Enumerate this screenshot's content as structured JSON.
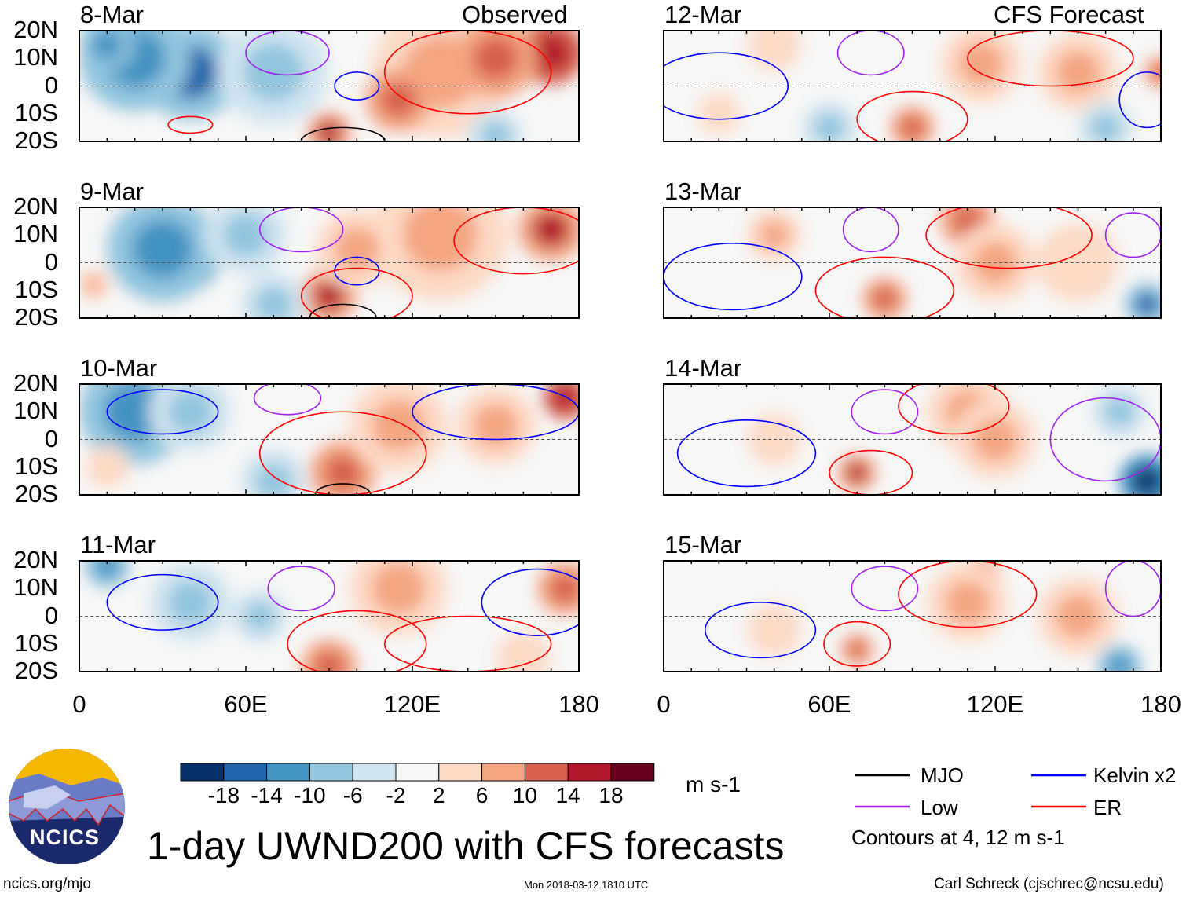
{
  "title": "1-day UWND200 with CFS forecasts",
  "left_header": "Observed",
  "right_header": "CFS Forecast",
  "lat_ticks": [
    "20N",
    "10N",
    "0",
    "10S",
    "20S"
  ],
  "lon_ticks": [
    "0",
    "60E",
    "120E",
    "180"
  ],
  "units": "m s-1",
  "colorbar": {
    "levels": [
      "-18",
      "-14",
      "-10",
      "-6",
      "-2",
      "2",
      "6",
      "10",
      "14",
      "18"
    ],
    "colors": [
      "#08306b",
      "#2166ac",
      "#4393c3",
      "#92c5de",
      "#d1e5f0",
      "#f7f7f7",
      "#fddbc7",
      "#f4a582",
      "#d6604d",
      "#b2182b",
      "#67001f"
    ]
  },
  "legend": {
    "mjo": "MJO",
    "kelvin": "Kelvin x2",
    "low": "Low",
    "er": "ER",
    "note": "Contours at 4, 12 m s-1",
    "colors": {
      "mjo": "#000000",
      "kelvin": "#0000ff",
      "low": "#a020f0",
      "er": "#ff0000"
    }
  },
  "logo_text": "NCICS",
  "footer": {
    "url": "ncics.org/mjo",
    "timestamp": "Mon 2018-03-12 1810 UTC",
    "author": "Carl Schreck (cjschrec@ncsu.edu)"
  },
  "panels": [
    {
      "date": "8-Mar",
      "blobs": [
        [
          40,
          5,
          -14,
          18
        ],
        [
          20,
          10,
          -10,
          20
        ],
        [
          70,
          5,
          -8,
          20
        ],
        [
          10,
          15,
          -10,
          10
        ],
        [
          130,
          5,
          10,
          25
        ],
        [
          170,
          12,
          18,
          12
        ],
        [
          150,
          10,
          12,
          15
        ],
        [
          90,
          -17,
          16,
          8
        ],
        [
          115,
          -5,
          12,
          12
        ],
        [
          150,
          -18,
          -6,
          10
        ]
      ],
      "contours": [
        [
          95,
          -20,
          15,
          5,
          "mjo"
        ],
        [
          75,
          12,
          15,
          8,
          "low"
        ],
        [
          100,
          0,
          8,
          5,
          "kelvin"
        ],
        [
          140,
          5,
          30,
          15,
          "er"
        ],
        [
          40,
          -14,
          8,
          3,
          "er"
        ]
      ]
    },
    {
      "date": "9-Mar",
      "blobs": [
        [
          40,
          0,
          -18,
          10
        ],
        [
          30,
          5,
          -12,
          20
        ],
        [
          60,
          10,
          -8,
          15
        ],
        [
          90,
          -12,
          16,
          10
        ],
        [
          130,
          10,
          10,
          25
        ],
        [
          170,
          12,
          16,
          12
        ],
        [
          100,
          5,
          8,
          15
        ],
        [
          5,
          -8,
          10,
          6
        ],
        [
          70,
          -15,
          -6,
          12
        ]
      ],
      "contours": [
        [
          95,
          -20,
          12,
          5,
          "mjo"
        ],
        [
          80,
          12,
          15,
          8,
          "low"
        ],
        [
          100,
          -3,
          8,
          5,
          "kelvin"
        ],
        [
          100,
          -12,
          20,
          10,
          "er"
        ],
        [
          160,
          8,
          25,
          12,
          "er"
        ]
      ]
    },
    {
      "date": "10-Mar",
      "blobs": [
        [
          20,
          10,
          -10,
          20
        ],
        [
          40,
          10,
          -8,
          15
        ],
        [
          10,
          -10,
          6,
          8
        ],
        [
          95,
          -12,
          14,
          12
        ],
        [
          115,
          5,
          10,
          18
        ],
        [
          175,
          15,
          18,
          8
        ],
        [
          150,
          5,
          8,
          15
        ],
        [
          70,
          -15,
          -6,
          12
        ]
      ],
      "contours": [
        [
          95,
          -20,
          10,
          4,
          "mjo"
        ],
        [
          75,
          15,
          12,
          6,
          "low"
        ],
        [
          95,
          -5,
          30,
          15,
          "er"
        ],
        [
          150,
          10,
          30,
          10,
          "kelvin"
        ],
        [
          30,
          10,
          20,
          8,
          "kelvin"
        ]
      ]
    },
    {
      "date": "11-Mar",
      "blobs": [
        [
          10,
          18,
          -12,
          8
        ],
        [
          40,
          5,
          -6,
          15
        ],
        [
          115,
          10,
          10,
          18
        ],
        [
          90,
          -18,
          12,
          10
        ],
        [
          175,
          10,
          14,
          10
        ],
        [
          160,
          -15,
          6,
          10
        ],
        [
          65,
          0,
          -6,
          10
        ]
      ],
      "contours": [
        [
          80,
          10,
          12,
          8,
          "low"
        ],
        [
          100,
          -10,
          25,
          12,
          "er"
        ],
        [
          165,
          5,
          20,
          12,
          "kelvin"
        ],
        [
          140,
          -10,
          30,
          10,
          "er"
        ],
        [
          30,
          5,
          20,
          10,
          "kelvin"
        ]
      ]
    },
    {
      "date": "12-Mar",
      "blobs": [
        [
          90,
          -15,
          14,
          8
        ],
        [
          115,
          8,
          10,
          15
        ],
        [
          150,
          5,
          10,
          15
        ],
        [
          180,
          5,
          14,
          6
        ],
        [
          60,
          -15,
          -6,
          10
        ],
        [
          40,
          15,
          6,
          10
        ],
        [
          20,
          -10,
          6,
          8
        ],
        [
          160,
          -15,
          -6,
          10
        ]
      ],
      "contours": [
        [
          90,
          -12,
          20,
          10,
          "er"
        ],
        [
          75,
          12,
          12,
          8,
          "low"
        ],
        [
          140,
          10,
          30,
          10,
          "er"
        ],
        [
          20,
          0,
          25,
          12,
          "kelvin"
        ],
        [
          175,
          -5,
          10,
          10,
          "kelvin"
        ]
      ]
    },
    {
      "date": "13-Mar",
      "blobs": [
        [
          80,
          -13,
          14,
          8
        ],
        [
          110,
          15,
          12,
          10
        ],
        [
          120,
          0,
          10,
          15
        ],
        [
          175,
          -15,
          -16,
          8
        ],
        [
          40,
          10,
          8,
          10
        ],
        [
          150,
          0,
          6,
          15
        ]
      ],
      "contours": [
        [
          80,
          -10,
          25,
          12,
          "er"
        ],
        [
          75,
          12,
          10,
          8,
          "low"
        ],
        [
          125,
          10,
          30,
          12,
          "er"
        ],
        [
          25,
          -5,
          25,
          12,
          "kelvin"
        ],
        [
          170,
          10,
          10,
          8,
          "low"
        ]
      ]
    },
    {
      "date": "14-Mar",
      "blobs": [
        [
          105,
          15,
          18,
          6
        ],
        [
          110,
          10,
          10,
          15
        ],
        [
          120,
          0,
          10,
          15
        ],
        [
          70,
          -12,
          16,
          7
        ],
        [
          175,
          -15,
          -18,
          10
        ],
        [
          165,
          10,
          -6,
          10
        ],
        [
          40,
          0,
          6,
          10
        ]
      ],
      "contours": [
        [
          105,
          12,
          20,
          10,
          "er"
        ],
        [
          75,
          -12,
          15,
          8,
          "er"
        ],
        [
          80,
          10,
          12,
          8,
          "low"
        ],
        [
          30,
          -5,
          25,
          12,
          "kelvin"
        ],
        [
          160,
          0,
          20,
          15,
          "low"
        ]
      ]
    },
    {
      "date": "15-Mar",
      "blobs": [
        [
          115,
          15,
          16,
          7
        ],
        [
          110,
          5,
          10,
          15
        ],
        [
          70,
          -12,
          12,
          6
        ],
        [
          165,
          -18,
          -12,
          8
        ],
        [
          150,
          0,
          8,
          15
        ],
        [
          40,
          -5,
          6,
          10
        ]
      ],
      "contours": [
        [
          110,
          8,
          25,
          12,
          "er"
        ],
        [
          70,
          -10,
          12,
          8,
          "er"
        ],
        [
          80,
          10,
          12,
          8,
          "low"
        ],
        [
          35,
          -5,
          20,
          10,
          "kelvin"
        ],
        [
          170,
          10,
          10,
          10,
          "low"
        ]
      ]
    }
  ]
}
